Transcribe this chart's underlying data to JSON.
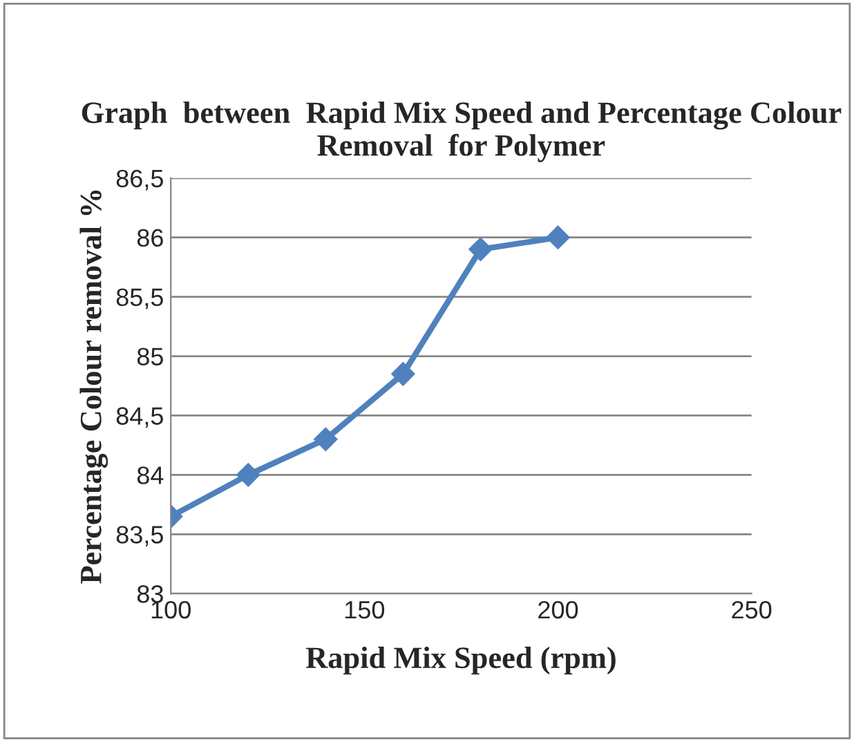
{
  "chart_data": {
    "type": "line",
    "title": "Graph  between  Rapid Mix Speed and Percentage Colour Removal  for Polymer",
    "xlabel": "Rapid Mix Speed (rpm)",
    "ylabel": "Percentage Colour removal %",
    "x": [
      100,
      120,
      140,
      160,
      180,
      200
    ],
    "series": [
      {
        "color": "#4f81bd",
        "values": [
          83.65,
          84.0,
          84.3,
          84.85,
          85.9,
          86.0
        ]
      }
    ],
    "xlim": [
      100,
      250
    ],
    "xticks": [
      100,
      150,
      200,
      250
    ],
    "ylim": [
      83,
      86.5
    ],
    "yticks": [
      83,
      {
        "value": 83.5,
        "label": "83,5"
      },
      84,
      {
        "value": 84.5,
        "label": "84,5"
      },
      85,
      {
        "value": 85.5,
        "label": "85,5"
      },
      86,
      {
        "value": 86.5,
        "label": "86,5"
      }
    ],
    "grid": "y",
    "marker": "diamond",
    "line_style": "solid"
  }
}
